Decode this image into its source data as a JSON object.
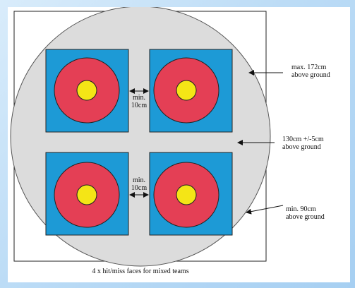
{
  "labels": {
    "min_gap_top_line1": "min.",
    "min_gap_top_line2": "10cm",
    "min_gap_bottom_line1": "min.",
    "min_gap_bottom_line2": "10cm",
    "max_height_line1": "max. 172cm",
    "max_height_line2": "above ground",
    "center_height_line1": "130cm +/-5cm",
    "center_height_line2": "above ground",
    "min_height_line1": "min. 90cm",
    "min_height_line2": "above ground",
    "caption": "4 x hit/miss faces for mixed teams"
  },
  "colors": {
    "boss": "#dcdcdc",
    "face_background": "#1d9ad6",
    "outer_ring": "#e43f55",
    "inner_gold": "#f4e516",
    "frame": "#222222"
  },
  "icons": [
    "double-arrow-icon",
    "left-arrow-icon"
  ]
}
